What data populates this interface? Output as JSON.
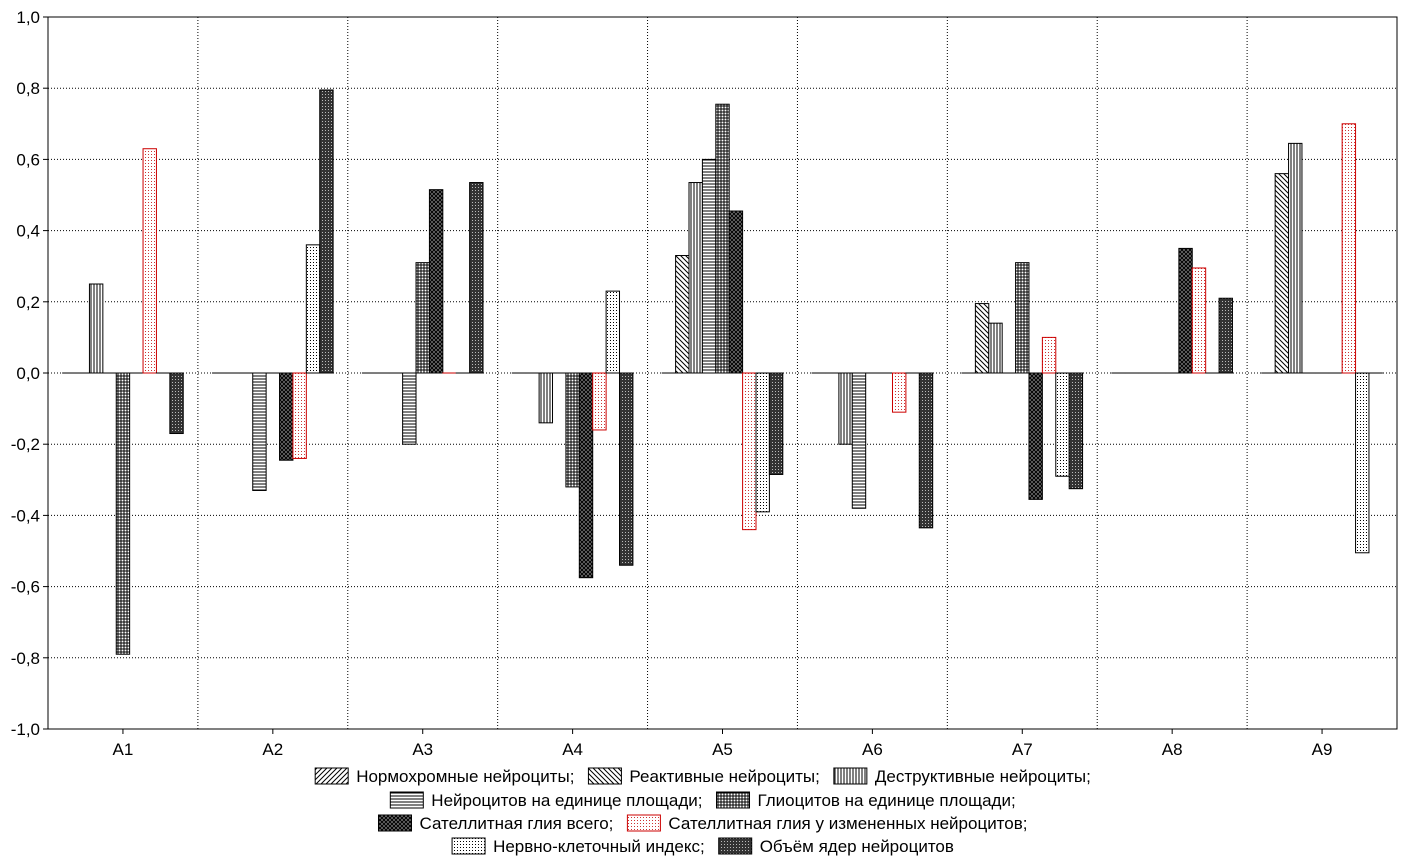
{
  "chart_data": {
    "type": "bar",
    "title": "",
    "xlabel": "",
    "ylabel": "",
    "ylim": [
      -1.0,
      1.0
    ],
    "y_ticks": [
      -1.0,
      -0.8,
      -0.6,
      -0.4,
      -0.2,
      0.0,
      0.2,
      0.4,
      0.6,
      0.8,
      1.0
    ],
    "y_tick_labels": [
      "-1,0",
      "-0,8",
      "-0,6",
      "-0,4",
      "-0,2",
      "0,0",
      "0,2",
      "0,4",
      "0,6",
      "0,8",
      "1,0"
    ],
    "grid": true,
    "legend_position": "bottom",
    "categories": [
      "A1",
      "A2",
      "A3",
      "A4",
      "A5",
      "A6",
      "A7",
      "A8",
      "A9"
    ],
    "series": [
      {
        "name": "Нормохромные нейроциты;",
        "pattern": "diag-fwd",
        "stroke": "#000000",
        "values": [
          0,
          0,
          0,
          0,
          0,
          0,
          0,
          0,
          0
        ]
      },
      {
        "name": "Реактивные нейроциты;",
        "pattern": "diag-back",
        "stroke": "#000000",
        "values": [
          0,
          0,
          0,
          0,
          0.33,
          0,
          0.195,
          0,
          0.56
        ]
      },
      {
        "name": "Деструктивные нейроциты;",
        "pattern": "vert",
        "stroke": "#000000",
        "values": [
          0.25,
          0,
          0,
          -0.14,
          0.535,
          -0.2,
          0.14,
          0,
          0.645
        ]
      },
      {
        "name": "Нейроцитов на единице площади;",
        "pattern": "horiz",
        "stroke": "#000000",
        "values": [
          0,
          -0.33,
          -0.2,
          0,
          0.6,
          -0.38,
          0,
          0,
          0
        ]
      },
      {
        "name": "Глиоцитов на единице площади;",
        "pattern": "grid",
        "stroke": "#000000",
        "values": [
          -0.79,
          0,
          0.31,
          -0.32,
          0.755,
          0,
          0.31,
          0,
          0
        ]
      },
      {
        "name": "Сателлитная глия всего;",
        "pattern": "cross",
        "stroke": "#000000",
        "values": [
          0,
          -0.245,
          0.515,
          -0.575,
          0.455,
          0,
          -0.355,
          0.35,
          0
        ]
      },
      {
        "name": "Сателлитная глия у измененных нейроцитов;",
        "pattern": "dots-red",
        "stroke": "#cc0000",
        "values": [
          0.63,
          -0.24,
          0,
          -0.16,
          -0.44,
          -0.11,
          0.1,
          0.295,
          0.7
        ]
      },
      {
        "name": "Нервно-клеточный индекс;",
        "pattern": "dots",
        "stroke": "#000000",
        "values": [
          0,
          0.36,
          0,
          0.23,
          -0.39,
          0,
          -0.29,
          0,
          -0.505
        ]
      },
      {
        "name": "Объём ядер нейроцитов",
        "pattern": "dense",
        "stroke": "#000000",
        "values": [
          -0.17,
          0.795,
          0.535,
          -0.54,
          -0.285,
          -0.435,
          -0.325,
          0.21,
          0
        ]
      }
    ],
    "legend_rows": [
      [
        0,
        1,
        2
      ],
      [
        3,
        4
      ],
      [
        5,
        6
      ],
      [
        7,
        8
      ]
    ]
  }
}
